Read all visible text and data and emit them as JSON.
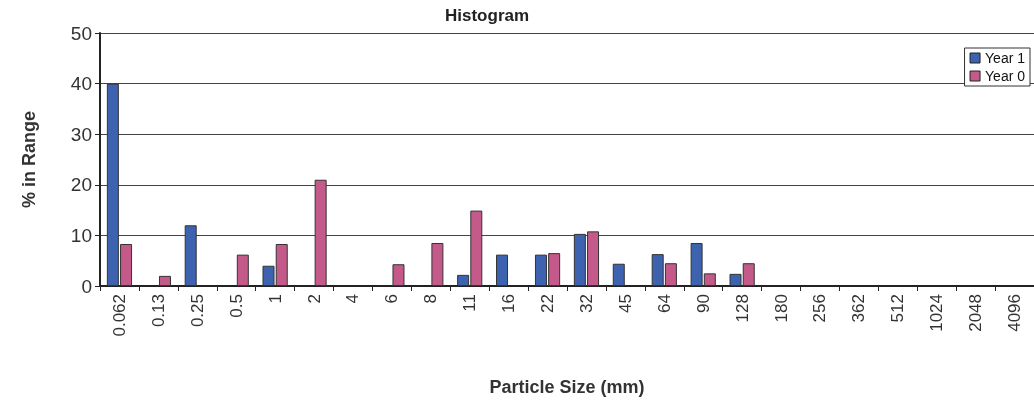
{
  "chart_data": {
    "type": "bar",
    "title": "Histogram",
    "xlabel": "Particle Size (mm)",
    "ylabel": "% in Range",
    "categories": [
      "0.062",
      "0.13",
      "0.25",
      "0.5",
      "1",
      "2",
      "4",
      "6",
      "8",
      "11",
      "16",
      "22",
      "32",
      "45",
      "64",
      "90",
      "128",
      "180",
      "256",
      "362",
      "512",
      "1024",
      "2048",
      "4096"
    ],
    "series": [
      {
        "name": "Year 1",
        "color": "#3d63b0",
        "values": [
          40,
          null,
          12,
          null,
          4,
          null,
          null,
          null,
          null,
          2.2,
          6.2,
          6.2,
          10.3,
          4.4,
          6.3,
          8.5,
          2.4,
          null,
          null,
          null,
          null,
          null,
          null,
          null
        ]
      },
      {
        "name": "Year 0",
        "color": "#c45a8a",
        "values": [
          8.3,
          2,
          null,
          6.2,
          8.3,
          21,
          null,
          4.3,
          8.5,
          14.9,
          null,
          6.5,
          10.8,
          null,
          4.5,
          2.5,
          4.5,
          null,
          null,
          null,
          null,
          null,
          null,
          null
        ]
      }
    ],
    "ylim": [
      0,
      50
    ],
    "yticks": [
      0,
      10,
      20,
      30,
      40,
      50
    ],
    "grid": "y",
    "legend": "top right"
  }
}
